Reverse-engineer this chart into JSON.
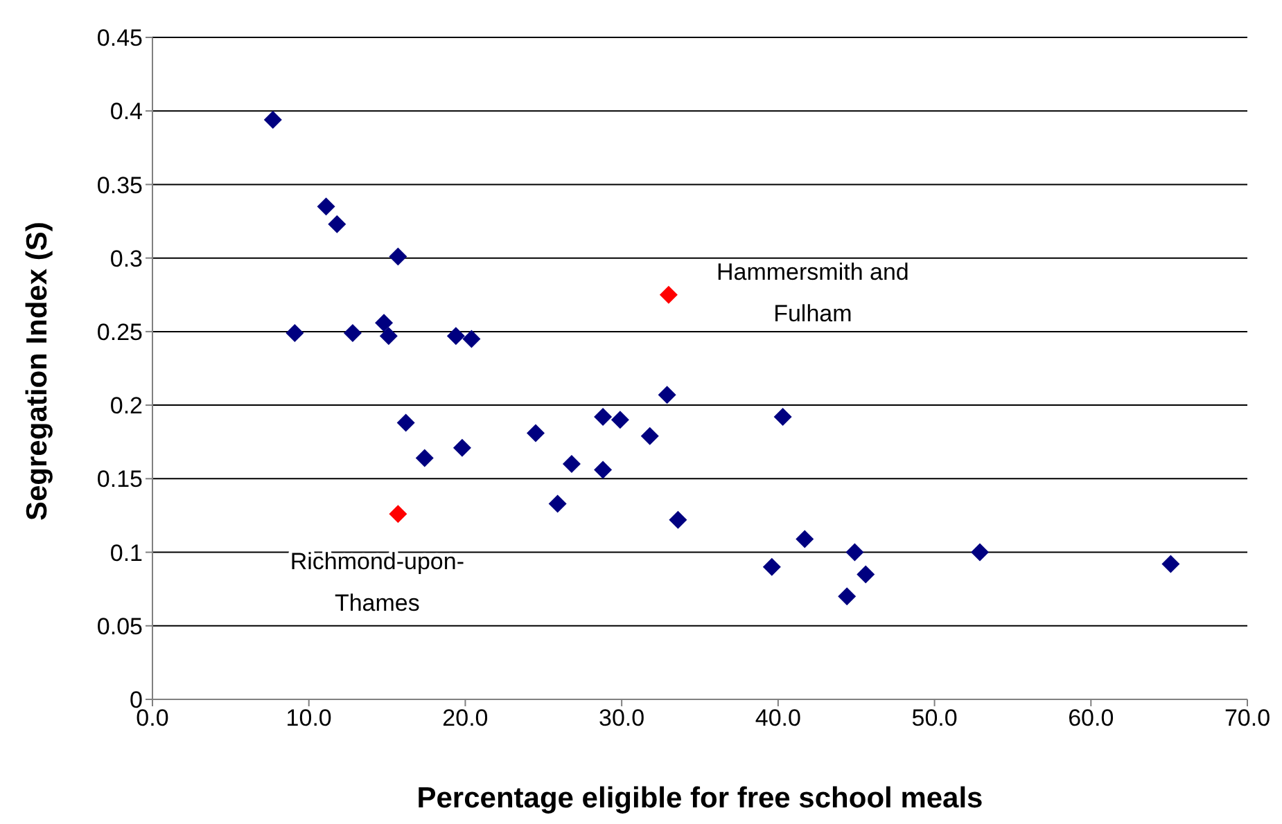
{
  "chart_data": {
    "type": "scatter",
    "xlabel": "Percentage eligible for free school meals",
    "ylabel": "Segregation Index (S)",
    "series": [
      {
        "color": "#000080",
        "x": [
          7.7,
          11.1,
          11.8,
          15.7,
          9.1,
          12.8,
          14.8,
          15.1,
          19.4,
          20.4,
          16.2,
          17.4,
          19.8,
          24.5,
          25.9,
          26.8,
          28.8,
          29.9,
          28.8,
          31.8,
          32.9,
          33.6,
          39.6,
          40.3,
          41.7,
          44.4,
          44.9,
          45.6,
          52.9,
          65.1
        ],
        "values": [
          0.394,
          0.335,
          0.323,
          0.301,
          0.249,
          0.249,
          0.256,
          0.247,
          0.247,
          0.245,
          0.188,
          0.164,
          0.171,
          0.181,
          0.133,
          0.16,
          0.192,
          0.19,
          0.156,
          0.179,
          0.207,
          0.122,
          0.09,
          0.192,
          0.109,
          0.07,
          0.1,
          0.085,
          0.1,
          0.092
        ]
      },
      {
        "color": "#ff0000",
        "x": [
          33.0,
          15.7
        ],
        "values": [
          0.275,
          0.126
        ]
      }
    ],
    "annotations": [
      {
        "text": "Hammersmith and Fulham",
        "x": 33.0,
        "y": 0.275
      },
      {
        "text": "Richmond-upon-Thames",
        "x": 15.7,
        "y": 0.126
      }
    ],
    "xlim": [
      0,
      70
    ],
    "xticks": [
      {
        "value": 0,
        "label": "0.0"
      },
      {
        "value": 10,
        "label": "10.0"
      },
      {
        "value": 20,
        "label": "20.0"
      },
      {
        "value": 30,
        "label": "30.0"
      },
      {
        "value": 40,
        "label": "40.0"
      },
      {
        "value": 50,
        "label": "50.0"
      },
      {
        "value": 60,
        "label": "60.0"
      },
      {
        "value": 70,
        "label": "70.0"
      }
    ],
    "ylim": [
      0,
      0.45
    ],
    "yticks": [
      0,
      0.05,
      0.1,
      0.15,
      0.2,
      0.25,
      0.3,
      0.35,
      0.4,
      0.45
    ],
    "grid": "y",
    "marker": "diamond",
    "legend": false
  }
}
